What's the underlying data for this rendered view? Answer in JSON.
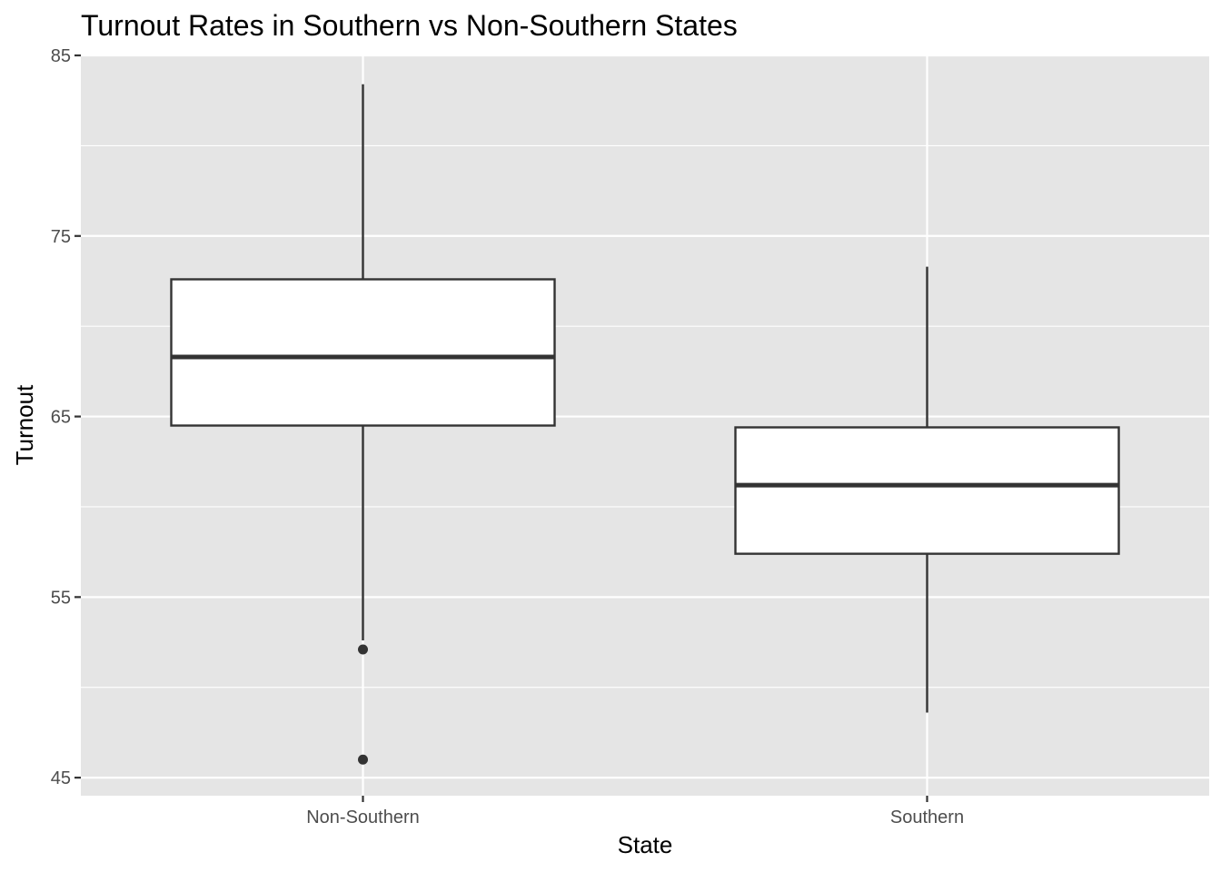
{
  "chart_data": {
    "type": "boxplot",
    "title": "Turnout Rates in Southern vs Non-Southern States",
    "xlabel": "State",
    "ylabel": "Turnout",
    "categories": [
      "Non-Southern",
      "Southern"
    ],
    "ylim": [
      44,
      85
    ],
    "yticks": [
      45,
      55,
      65,
      75,
      85
    ],
    "grid": true,
    "boxes": [
      {
        "category": "Non-Southern",
        "whisker_low": 52.6,
        "q1": 64.5,
        "median": 68.3,
        "q3": 72.6,
        "whisker_high": 83.4,
        "outliers": [
          52.1,
          46.0
        ]
      },
      {
        "category": "Southern",
        "whisker_low": 48.6,
        "q1": 57.4,
        "median": 61.2,
        "q3": 64.4,
        "whisker_high": 73.3,
        "outliers": []
      }
    ],
    "colors": {
      "panel_background": "#e5e5e5",
      "grid": "#ffffff",
      "box_fill": "#ffffff",
      "box_line": "#333333",
      "tick_label": "#4d4d4d",
      "title": "#000000"
    }
  }
}
